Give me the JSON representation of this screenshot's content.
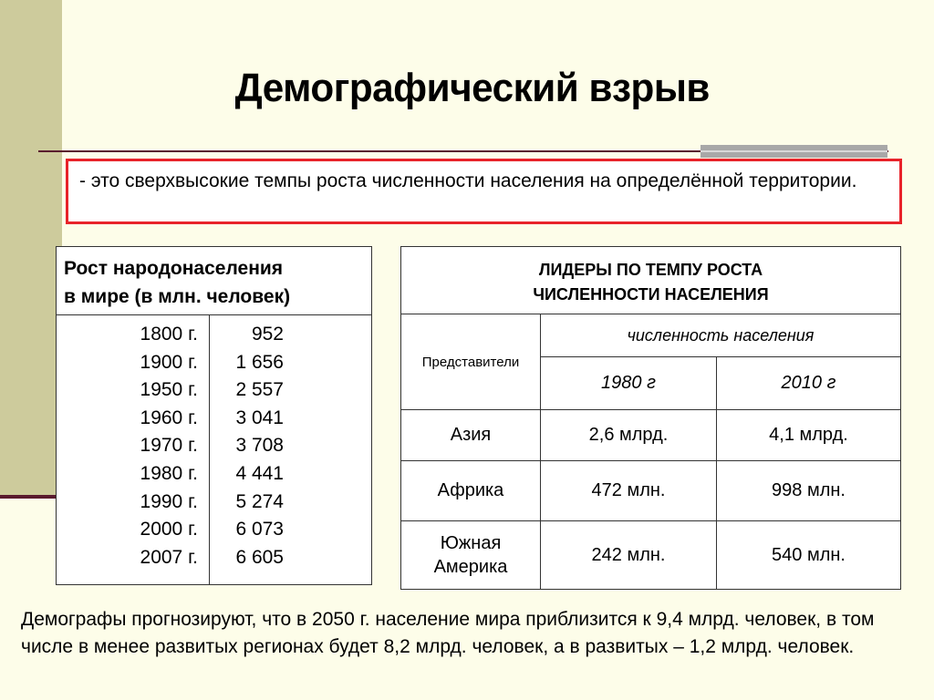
{
  "title": "Демографический взрыв",
  "definition": "- это сверхвысокие темпы роста численности населения на определённой территории.",
  "growth_table": {
    "header_line1": "Рост  народонаселения",
    "header_line2": "в мире  (в млн. человек)",
    "rows": [
      {
        "year": "1800 г.",
        "value": "952"
      },
      {
        "year": "1900 г.",
        "value": "1 656"
      },
      {
        "year": "1950 г.",
        "value": "2 557"
      },
      {
        "year": "1960 г.",
        "value": "3 041"
      },
      {
        "year": "1970 г.",
        "value": "3 708"
      },
      {
        "year": "1980 г.",
        "value": "4 441"
      },
      {
        "year": "1990 г.",
        "value": "5 274"
      },
      {
        "year": "2000 г.",
        "value": "6 073"
      },
      {
        "year": "2007 г.",
        "value": "6 605"
      }
    ]
  },
  "leaders_table": {
    "header_line1": "ЛИДЕРЫ ПО ТЕМПУ РОСТА",
    "header_line2": "ЧИСЛЕННОСТИ НАСЕЛЕНИЯ",
    "representatives_label": "Представители",
    "population_label": "численность населения",
    "year1": "1980 г",
    "year2": "2010 г",
    "rows": [
      {
        "region": "Азия",
        "region_line2": "",
        "v1980": "2,6 млрд.",
        "v2010": "4,1 млрд."
      },
      {
        "region": "Африка",
        "region_line2": "",
        "v1980": "472 млн.",
        "v2010": "998 млн."
      },
      {
        "region": "Южная",
        "region_line2": "Америка",
        "v1980": "242 млн.",
        "v2010": "540 млн."
      }
    ]
  },
  "forecast": "Демографы прогнозируют, что в 2050 г. население мира  приблизится к 9,4 млрд. человек, в том числе в менее развитых регионах будет 8,2 млрд. человек, а в развитых – 1,2 млрд. человек."
}
